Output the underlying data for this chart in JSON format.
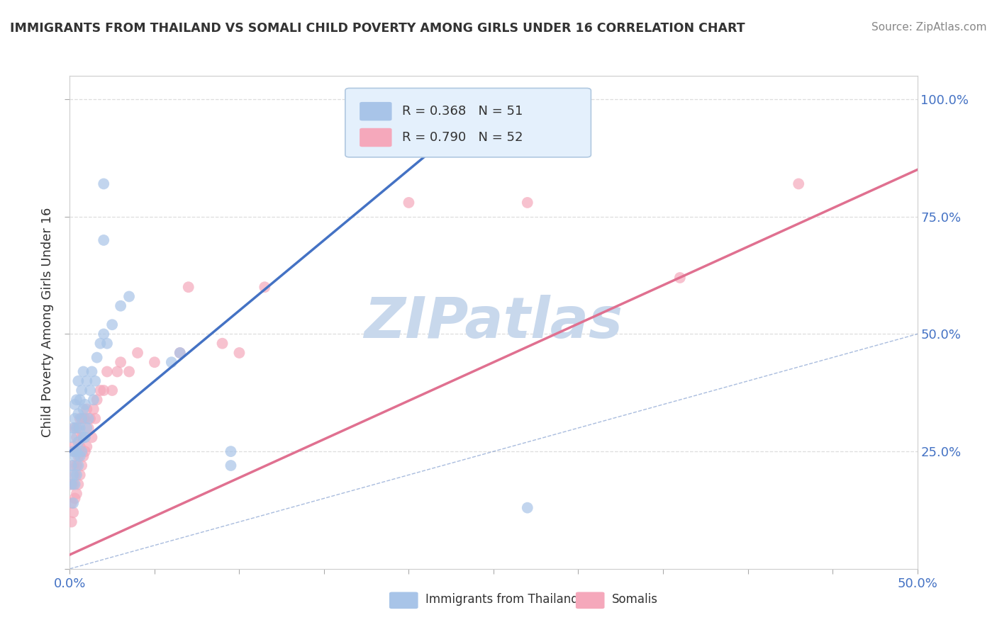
{
  "title": "IMMIGRANTS FROM THAILAND VS SOMALI CHILD POVERTY AMONG GIRLS UNDER 16 CORRELATION CHART",
  "source": "Source: ZipAtlas.com",
  "ylabel": "Child Poverty Among Girls Under 16",
  "xlim": [
    0.0,
    0.5
  ],
  "ylim": [
    0.0,
    1.05
  ],
  "thailand_R": 0.368,
  "thailand_N": 51,
  "somali_R": 0.79,
  "somali_N": 52,
  "thailand_color": "#a8c4e8",
  "somali_color": "#f5a8bb",
  "thailand_line_color": "#4472c4",
  "somali_line_color": "#e07090",
  "diagonal_color": "#7090c8",
  "background_color": "#ffffff",
  "watermark": "ZIPatlas",
  "watermark_color": "#c8d8ec",
  "thailand_line_x0": 0.0,
  "thailand_line_y0": 0.25,
  "thailand_line_x1": 0.25,
  "thailand_line_y1": 1.0,
  "somali_line_x0": 0.0,
  "somali_line_y0": 0.03,
  "somali_line_x1": 0.5,
  "somali_line_y1": 0.85,
  "thailand_scatter_x": [
    0.001,
    0.001,
    0.001,
    0.002,
    0.002,
    0.002,
    0.002,
    0.003,
    0.003,
    0.003,
    0.003,
    0.004,
    0.004,
    0.004,
    0.004,
    0.005,
    0.005,
    0.005,
    0.005,
    0.006,
    0.006,
    0.006,
    0.007,
    0.007,
    0.007,
    0.008,
    0.008,
    0.008,
    0.009,
    0.009,
    0.01,
    0.01,
    0.011,
    0.012,
    0.013,
    0.014,
    0.015,
    0.016,
    0.018,
    0.02,
    0.022,
    0.025,
    0.03,
    0.035,
    0.06,
    0.065,
    0.095,
    0.095,
    0.02,
    0.02,
    0.27
  ],
  "thailand_scatter_y": [
    0.18,
    0.22,
    0.28,
    0.14,
    0.2,
    0.25,
    0.3,
    0.18,
    0.24,
    0.32,
    0.35,
    0.2,
    0.25,
    0.3,
    0.36,
    0.22,
    0.27,
    0.33,
    0.4,
    0.24,
    0.3,
    0.36,
    0.25,
    0.32,
    0.38,
    0.28,
    0.34,
    0.42,
    0.28,
    0.35,
    0.3,
    0.4,
    0.32,
    0.38,
    0.42,
    0.36,
    0.4,
    0.45,
    0.48,
    0.5,
    0.48,
    0.52,
    0.56,
    0.58,
    0.44,
    0.46,
    0.22,
    0.25,
    0.82,
    0.7,
    0.13
  ],
  "somali_scatter_x": [
    0.001,
    0.001,
    0.001,
    0.002,
    0.002,
    0.002,
    0.002,
    0.003,
    0.003,
    0.003,
    0.003,
    0.004,
    0.004,
    0.004,
    0.005,
    0.005,
    0.005,
    0.006,
    0.006,
    0.006,
    0.007,
    0.007,
    0.008,
    0.008,
    0.009,
    0.009,
    0.01,
    0.01,
    0.011,
    0.012,
    0.013,
    0.014,
    0.015,
    0.016,
    0.018,
    0.02,
    0.022,
    0.025,
    0.028,
    0.03,
    0.035,
    0.04,
    0.05,
    0.065,
    0.07,
    0.09,
    0.1,
    0.115,
    0.2,
    0.27,
    0.36,
    0.43
  ],
  "somali_scatter_y": [
    0.1,
    0.14,
    0.18,
    0.12,
    0.18,
    0.22,
    0.26,
    0.15,
    0.2,
    0.25,
    0.3,
    0.16,
    0.22,
    0.28,
    0.18,
    0.24,
    0.3,
    0.2,
    0.26,
    0.32,
    0.22,
    0.28,
    0.24,
    0.32,
    0.25,
    0.32,
    0.26,
    0.34,
    0.3,
    0.32,
    0.28,
    0.34,
    0.32,
    0.36,
    0.38,
    0.38,
    0.42,
    0.38,
    0.42,
    0.44,
    0.42,
    0.46,
    0.44,
    0.46,
    0.6,
    0.48,
    0.46,
    0.6,
    0.78,
    0.78,
    0.62,
    0.82
  ]
}
